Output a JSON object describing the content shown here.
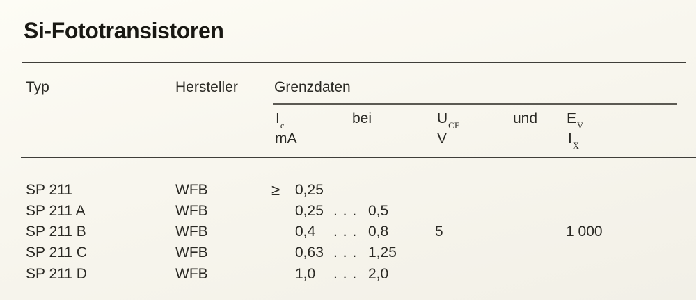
{
  "page": {
    "title": "Si-Fototransistoren"
  },
  "table": {
    "columns": {
      "typ": "Typ",
      "hersteller": "Hersteller",
      "grenzdaten": "Grenzdaten"
    },
    "sub_headers": {
      "ic": {
        "base": "I",
        "sub": "c"
      },
      "bei": "bei",
      "uce": {
        "base": "U",
        "sub": "CE"
      },
      "und": "und",
      "ev": {
        "base": "E",
        "sub": "V"
      },
      "ic_unit": "mA",
      "uce_unit": "V",
      "ix": {
        "base": "I",
        "sub": "X"
      }
    },
    "rows": [
      {
        "typ": "SP 211",
        "hersteller": "WFB",
        "prefix": "≥",
        "ic_min": "0,25",
        "dots": "",
        "ic_max": "",
        "uce": "",
        "ev": ""
      },
      {
        "typ": "SP 211 A",
        "hersteller": "WFB",
        "prefix": "",
        "ic_min": "0,25",
        "dots": ". . .",
        "ic_max": "0,5",
        "uce": "",
        "ev": ""
      },
      {
        "typ": "SP 211 B",
        "hersteller": "WFB",
        "prefix": "",
        "ic_min": "0,4",
        "dots": ". . .",
        "ic_max": "0,8",
        "uce": "5",
        "ev": "1 000"
      },
      {
        "typ": "SP 211 C",
        "hersteller": "WFB",
        "prefix": "",
        "ic_min": "0,63",
        "dots": ". . .",
        "ic_max": "1,25",
        "uce": "",
        "ev": ""
      },
      {
        "typ": "SP 211 D",
        "hersteller": "WFB",
        "prefix": "",
        "ic_min": "1,0",
        "dots": ". . .",
        "ic_max": "2,0",
        "uce": "",
        "ev": ""
      }
    ]
  },
  "colors": {
    "paper": "#f8f6ee",
    "ink": "#2a2924",
    "rule": "#3f3e39"
  }
}
